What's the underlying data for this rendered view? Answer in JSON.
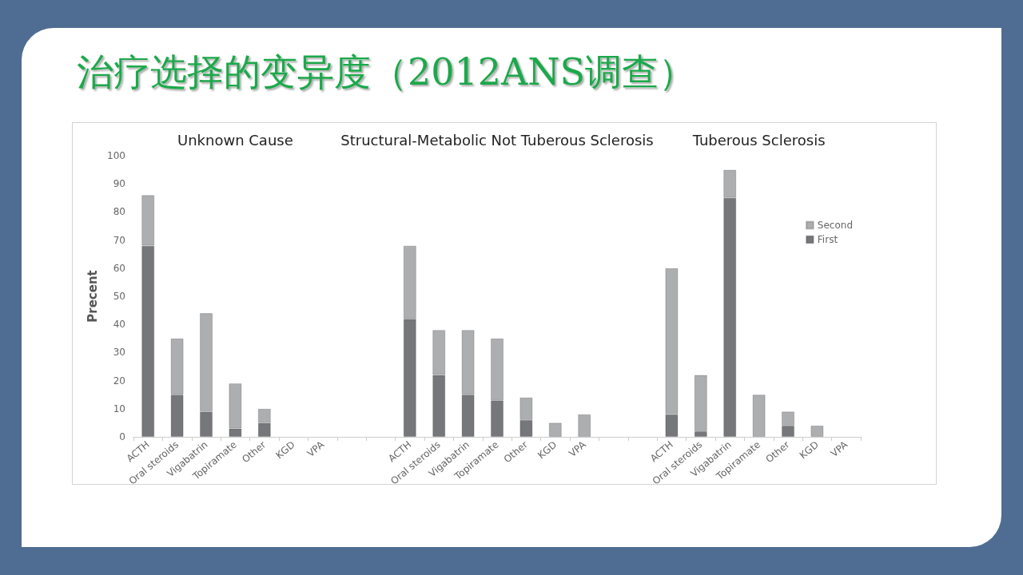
{
  "chart_data": {
    "type": "bar",
    "title": "治疗选择的变异度（2012ANS调查）",
    "ylabel": "Precent",
    "annotations": [
      "Unknown Cause",
      "Structural-Metabolic Not Tuberous Sclerosis",
      "Tuberous Sclerosis"
    ],
    "categories": [
      "ACTH",
      "Oral steroids",
      "Vigabatrin",
      "Topiramate",
      "Other",
      "KGD",
      "VPA",
      null,
      null,
      "ACTH",
      "Oral steroids",
      "Vigabatrin",
      "Topiramate",
      "Other",
      "KGD",
      "VPA",
      null,
      null,
      "ACTH",
      "Oral steroids",
      "Vigabatrin",
      "Topiramate",
      "Other",
      "KGD",
      "VPA"
    ],
    "stacked": true,
    "series": [
      {
        "name": "First",
        "color": "#76777a",
        "values": [
          68,
          15,
          9,
          3,
          5,
          0,
          0,
          null,
          null,
          42,
          22,
          15,
          13,
          6,
          0,
          0,
          null,
          null,
          8,
          2,
          85,
          0,
          4,
          0,
          0
        ]
      },
      {
        "name": "Second",
        "color": "#adaeb0",
        "values": [
          18,
          20,
          35,
          16,
          5,
          0,
          0,
          null,
          null,
          26,
          16,
          23,
          22,
          8,
          5,
          8,
          null,
          null,
          52,
          20,
          10,
          15,
          5,
          4,
          0
        ]
      }
    ],
    "ylim": [
      0,
      100
    ],
    "yticks": [
      0,
      10,
      20,
      30,
      40,
      50,
      60,
      70,
      80,
      90,
      100
    ],
    "grid": false,
    "legend": "top right"
  }
}
